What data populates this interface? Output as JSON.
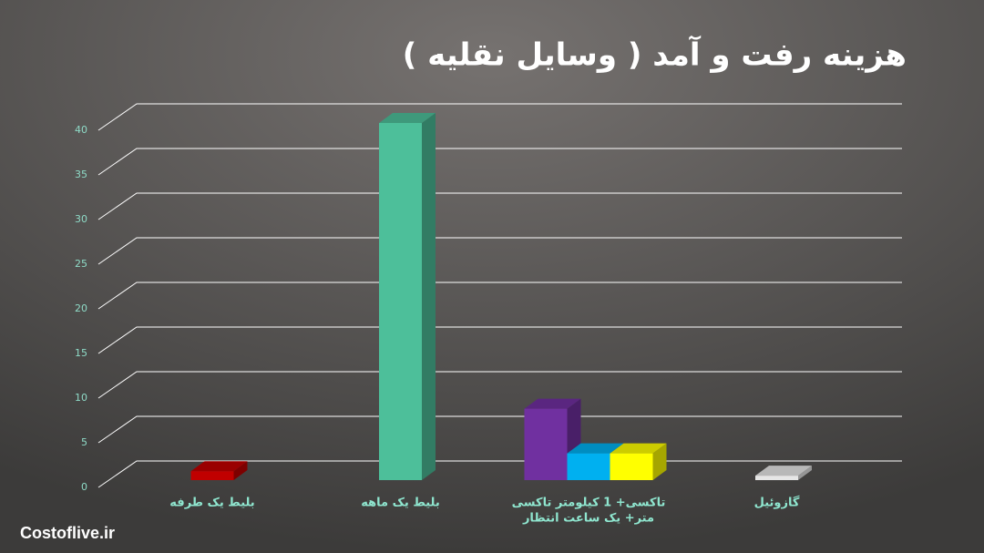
{
  "chart_data": {
    "type": "bar3d",
    "title": "هزینه رفت و آمد ( وسایل نقلیه )",
    "categories": [
      [
        "بلیط یک طرفه"
      ],
      [
        "بلیط یک ماهه"
      ],
      [
        "تاکسی+ 1 کیلومتر تاکسی",
        "متر+ یک ساعت انتظار"
      ],
      [
        "گازوئیل"
      ]
    ],
    "values": [
      [
        1
      ],
      [
        40
      ],
      [
        8,
        3,
        3
      ],
      [
        0.5
      ]
    ],
    "colors": [
      [
        "#c00000"
      ],
      [
        "#4dbf9a"
      ],
      [
        "#7030a0",
        "#00b0f0",
        "#ffff00"
      ],
      [
        "#e6e6e6"
      ]
    ],
    "ylim": [
      0,
      40
    ],
    "yticks": [
      0,
      5,
      10,
      15,
      20,
      25,
      30,
      35,
      40
    ],
    "grid": true
  },
  "watermark": "Costoflive.ir"
}
